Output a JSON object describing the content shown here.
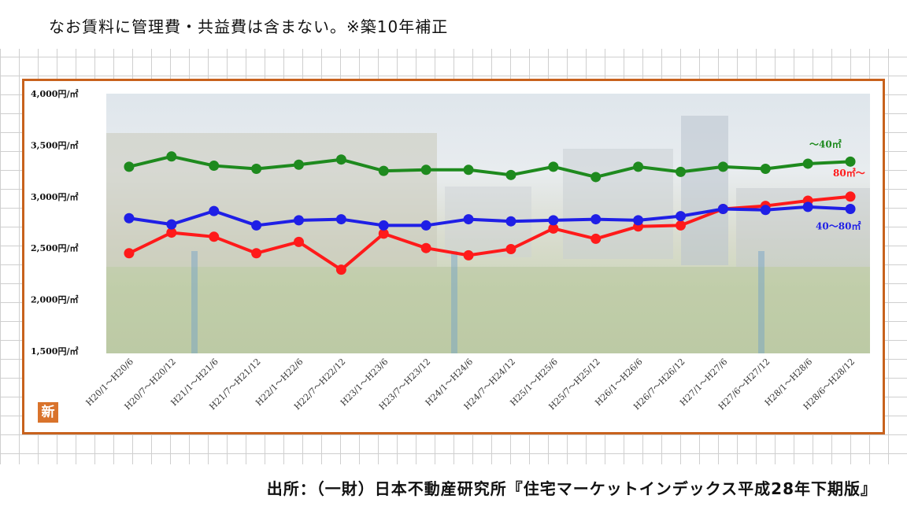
{
  "header": {
    "note": "なお賃料に管理費・共益費は含まない。※築10年補正"
  },
  "footer": {
    "source": "出所：（一財）日本不動産研究所『住宅マーケットインデックス平成28年下期版』"
  },
  "logo": {
    "text": "新",
    "color": "#d9732c"
  },
  "colors": {
    "frame": "#c8621d"
  },
  "chart_data": {
    "type": "line",
    "title": "",
    "xlabel": "",
    "ylabel": "",
    "ylim": [
      1500,
      4000
    ],
    "y_ticks": [
      1500,
      2000,
      2500,
      3000,
      3500,
      4000
    ],
    "y_tick_labels": [
      "1,500円/㎡",
      "2,000円/㎡",
      "2,500円/㎡",
      "3,000円/㎡",
      "3,500円/㎡",
      "4,000円/㎡"
    ],
    "categories": [
      "H20/1～H20/6",
      "H20/7～H20/12",
      "H21/1～H21/6",
      "H21/7～H21/12",
      "H22/1～H22/6",
      "H22/7～H22/12",
      "H23/1～H23/6",
      "H23/7～H23/12",
      "H24/1～H24/6",
      "H24/7～H24/12",
      "H25/1～H25/6",
      "H25/7～H25/12",
      "H26/1～H26/6",
      "H26/7～H26/12",
      "H27/1～H27/6",
      "H27/6～H27/12",
      "H28/1～H28/6",
      "H28/6～H28/12"
    ],
    "grid": false,
    "legend": "inline labels at right end",
    "series": [
      {
        "name": "～40㎡",
        "color": "#1e8a1e",
        "values": [
          3290,
          3390,
          3300,
          3270,
          3310,
          3360,
          3250,
          3260,
          3260,
          3210,
          3290,
          3190,
          3290,
          3240,
          3290,
          3270,
          3320,
          3340
        ]
      },
      {
        "name": "80㎡～",
        "color": "#ff1a1a",
        "values": [
          2450,
          2650,
          2610,
          2450,
          2560,
          2290,
          2640,
          2500,
          2430,
          2490,
          2690,
          2590,
          2710,
          2720,
          2880,
          2910,
          2960,
          3000
        ]
      },
      {
        "name": "40～80㎡",
        "color": "#1f1fe6",
        "values": [
          2790,
          2730,
          2860,
          2720,
          2770,
          2780,
          2720,
          2720,
          2780,
          2760,
          2770,
          2780,
          2770,
          2810,
          2880,
          2870,
          2900,
          2880
        ]
      }
    ]
  }
}
